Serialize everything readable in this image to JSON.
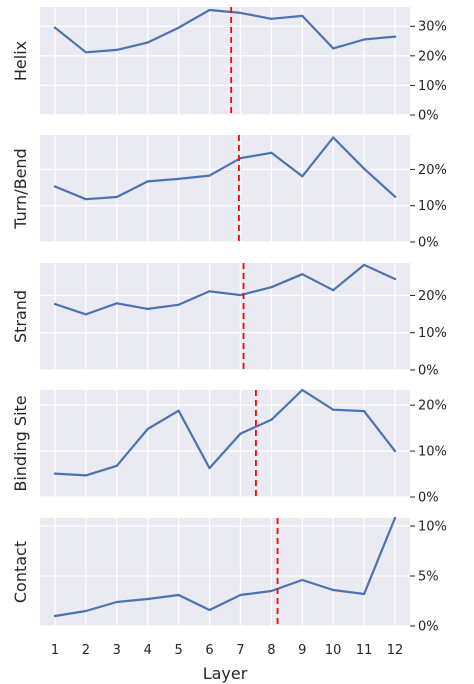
{
  "chart_data": [
    {
      "type": "line",
      "ylabel": "Helix",
      "x": [
        1,
        2,
        3,
        4,
        5,
        6,
        7,
        8,
        9,
        10,
        11,
        12
      ],
      "values": [
        29.5,
        21.2,
        22.0,
        24.5,
        29.5,
        35.5,
        34.5,
        32.5,
        33.5,
        22.5,
        25.5,
        26.5
      ],
      "vline": 6.7,
      "ylim": [
        0,
        36.5
      ],
      "yticks": [
        0,
        10,
        20,
        30
      ],
      "yticklabels": [
        "0%",
        "10%",
        "20%",
        "30%"
      ]
    },
    {
      "type": "line",
      "ylabel": "Turn/Bend",
      "x": [
        1,
        2,
        3,
        4,
        5,
        6,
        7,
        8,
        9,
        10,
        11,
        12
      ],
      "values": [
        15.3,
        11.8,
        12.4,
        16.7,
        17.4,
        18.3,
        23.1,
        24.6,
        18.1,
        28.8,
        20.2,
        12.5
      ],
      "vline": 6.95,
      "ylim": [
        0,
        29.5
      ],
      "yticks": [
        0,
        10,
        20
      ],
      "yticklabels": [
        "0%",
        "10%",
        "20%"
      ]
    },
    {
      "type": "line",
      "ylabel": "Strand",
      "x": [
        1,
        2,
        3,
        4,
        5,
        6,
        7,
        8,
        9,
        10,
        11,
        12
      ],
      "values": [
        17.7,
        14.9,
        17.9,
        16.4,
        17.5,
        21.1,
        20.1,
        22.2,
        25.7,
        21.4,
        28.2,
        24.4
      ],
      "vline": 7.1,
      "ylim": [
        0,
        28.7
      ],
      "yticks": [
        0,
        10,
        20
      ],
      "yticklabels": [
        "0%",
        "10%",
        "20%"
      ]
    },
    {
      "type": "line",
      "ylabel": "Binding Site",
      "x": [
        1,
        2,
        3,
        4,
        5,
        6,
        7,
        8,
        9,
        10,
        11,
        12
      ],
      "values": [
        5.1,
        4.7,
        6.8,
        14.8,
        18.8,
        6.3,
        13.8,
        16.8,
        23.3,
        19.0,
        18.7,
        10.0
      ],
      "vline": 7.5,
      "ylim": [
        0,
        23.3
      ],
      "yticks": [
        0,
        10,
        20
      ],
      "yticklabels": [
        "0%",
        "10%",
        "20%"
      ]
    },
    {
      "type": "line",
      "ylabel": "Contact",
      "x": [
        1,
        2,
        3,
        4,
        5,
        6,
        7,
        8,
        9,
        10,
        11,
        12
      ],
      "values": [
        1.0,
        1.5,
        2.4,
        2.7,
        3.1,
        1.6,
        3.1,
        3.5,
        4.6,
        3.6,
        3.2,
        10.8
      ],
      "vline": 8.2,
      "ylim": [
        0,
        10.8
      ],
      "yticks": [
        0,
        5,
        10
      ],
      "yticklabels": [
        "0%",
        "5%",
        "10%"
      ],
      "xlabel": "Layer",
      "xticklabels": [
        "1",
        "2",
        "3",
        "4",
        "5",
        "6",
        "7",
        "8",
        "9",
        "10",
        "11",
        "12"
      ]
    }
  ],
  "colors": {
    "line": "#4c72b0",
    "vline": "#ff0000",
    "panel_bg": "#eaeaf2",
    "grid": "#ffffff"
  }
}
